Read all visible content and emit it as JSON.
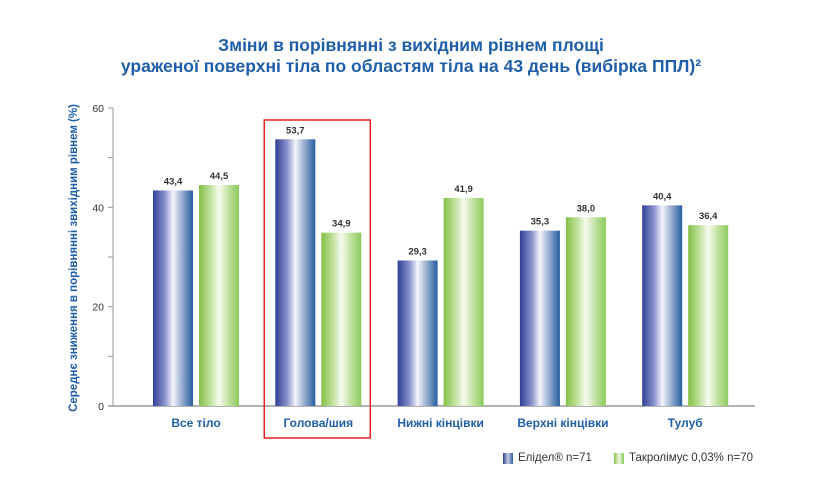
{
  "chart_data": {
    "type": "bar",
    "title": [
      "Зміни в порівнянні з вихідним рівнем площі",
      "ураженої поверхні тіла по областям тіла на 43 день (вибірка ППЛ)²"
    ],
    "ylabel": "Середнє зниження в порівнянні звихідним рівнем (%)",
    "xlabel": "",
    "ylim": [
      0,
      60
    ],
    "yticks": [
      "0",
      "20",
      "40",
      "60"
    ],
    "categories": [
      "Все тіло",
      "Голова/шия",
      "Нижні кінцівки",
      "Верхні кінцівки",
      "Тулуб"
    ],
    "series": [
      {
        "name": "Елідел® n=71",
        "values": [
          43.4,
          53.7,
          29.3,
          35.3,
          40.4
        ],
        "labels": [
          "43,4",
          "53,7",
          "29,3",
          "35,3",
          "40,4"
        ],
        "color": "#2f3f96"
      },
      {
        "name": "Такролімус 0,03% n=70",
        "values": [
          44.5,
          34.9,
          41.9,
          38.0,
          36.4
        ],
        "labels": [
          "44,5",
          "34,9",
          "41,9",
          "38,0",
          "36,4"
        ],
        "color": "#86c04a"
      }
    ],
    "highlighted_category": "Голова/шия",
    "highlight_color": "#e02020",
    "grid": false,
    "legend": "bottom-right"
  },
  "colors": {
    "title": "#1f5ea8",
    "category_labels": "#1f5ea8"
  }
}
